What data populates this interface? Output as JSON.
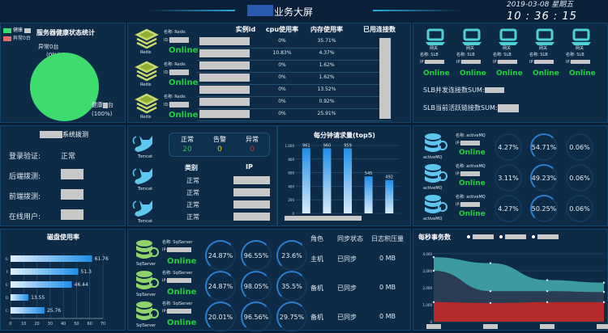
{
  "header": {
    "title": "业务大屏",
    "date": "2019-03-08 星期五",
    "time": "10 : 36 : 15"
  },
  "health": {
    "title": "服务器健康状态统计",
    "legend_healthy": "健康",
    "legend_abnormal": "异常0台",
    "label_abnormal": "异常0台",
    "label_abnormal_pct": "(0%)",
    "label_healthy": "健康",
    "label_healthy_suffix": "台",
    "label_healthy_pct": "(100%)",
    "colors": {
      "healthy": "#3ddc6e",
      "abnormal": "#e86a6a"
    }
  },
  "redis": {
    "icon_label": "Redis",
    "name_label": "名称: Redis",
    "id_label": "ID:",
    "status": "Online",
    "columns": [
      "实例id",
      "cpu使用率",
      "内存使用率",
      "已用连接数"
    ],
    "rows": [
      {
        "cpu": "0%",
        "mem": "35.71%"
      },
      {
        "cpu": "10.83%",
        "mem": "4.37%"
      },
      {
        "cpu": "0%",
        "mem": "1.62%"
      },
      {
        "cpu": "0%",
        "mem": "1.62%"
      },
      {
        "cpu": "0%",
        "mem": "13.52%"
      },
      {
        "cpu": "0%",
        "mem": "0.92%"
      },
      {
        "cpu": "0%",
        "mem": "25.91%"
      }
    ]
  },
  "slb": {
    "type_label": "网关",
    "name_label": "名称: SLB",
    "ip_label": "IP:",
    "status": "Online",
    "sum_concurrent": "SLB并发连接数SUM:",
    "sum_active": "SLB当前活跃链接数SUM:"
  },
  "probe": {
    "title_suffix": "系统拨测",
    "rows": [
      {
        "label": "登录验证:",
        "value": "正常"
      },
      {
        "label": "后端拨测:",
        "value": ""
      },
      {
        "label": "前端拨测:",
        "value": ""
      },
      {
        "label": "在线用户:",
        "value": ""
      }
    ]
  },
  "tomcat": {
    "icon_label": "Tomcat",
    "stats": [
      {
        "label": "正常",
        "value": "20",
        "color": "#27c24c"
      },
      {
        "label": "告警",
        "value": "0",
        "color": "#e5d21f"
      },
      {
        "label": "异常",
        "value": "0",
        "color": "#c0392b"
      }
    ],
    "columns": [
      "类别",
      "IP"
    ],
    "rows": [
      "正常",
      "正常",
      "正常",
      "正常"
    ]
  },
  "activemq": {
    "icon_label": "activeMQ",
    "name_label": "名称: activeMQ",
    "ip_label": "IP:",
    "status": "Online",
    "rows": [
      [
        "4.27%",
        "54.71%",
        "0.06%"
      ],
      [
        "3.11%",
        "49.23%",
        "0.06%"
      ],
      [
        "4.27%",
        "50.25%",
        "0.06%"
      ]
    ]
  },
  "sqlserver": {
    "icon_label": "SqlServer",
    "name_label": "名称: SqlServer",
    "ip_label": "IP:",
    "status": "Online",
    "gauges": [
      [
        "24.87%",
        "96.55%",
        "23.6%"
      ],
      [
        "24.87%",
        "98.05%",
        "35.5%"
      ],
      [
        "20.01%",
        "96.56%",
        "29.75%"
      ]
    ],
    "columns": [
      "角色",
      "同步状态",
      "日志积压量"
    ],
    "rows": [
      [
        "主机",
        "已同步",
        "0 MB"
      ],
      [
        "备机",
        "已同步",
        "0 MB"
      ],
      [
        "备机",
        "已同步",
        "0 MB"
      ]
    ]
  },
  "chart_data": [
    {
      "type": "bar",
      "title": "每分钟请求量(top5)",
      "values": [
        961,
        960,
        959,
        545,
        492
      ],
      "ylim": [
        0,
        1000
      ],
      "yticks": [
        "0",
        "200",
        "400",
        "600",
        "800",
        "1,000"
      ],
      "grid": true
    },
    {
      "type": "bar",
      "orientation": "horizontal",
      "title": "磁盘使用率",
      "categories": [
        "G:",
        "F:",
        "E:",
        "D:",
        "C:"
      ],
      "values": [
        61.76,
        51.3,
        46.44,
        13.55,
        25.76
      ],
      "xlim": [
        0,
        70
      ],
      "xticks": [
        "0",
        "10",
        "20",
        "30",
        "40",
        "50",
        "60",
        "70"
      ],
      "grid": true
    },
    {
      "type": "area",
      "title": "每秒事务数",
      "legend_placement": "top",
      "ylim": [
        0,
        4000
      ],
      "yticks": [
        "0",
        "1,000",
        "2,000",
        "3,000",
        "4,000"
      ],
      "series": [
        {
          "values": [
            3800,
            3450,
            2450,
            2300
          ],
          "color": "#3c9aa0"
        },
        {
          "values": [
            3000,
            1800,
            1800,
            1750
          ],
          "color": "#2b3d55"
        },
        {
          "values": [
            1150,
            1100,
            1150,
            1150
          ],
          "color": "#b52a2a"
        }
      ],
      "grid": true
    }
  ]
}
